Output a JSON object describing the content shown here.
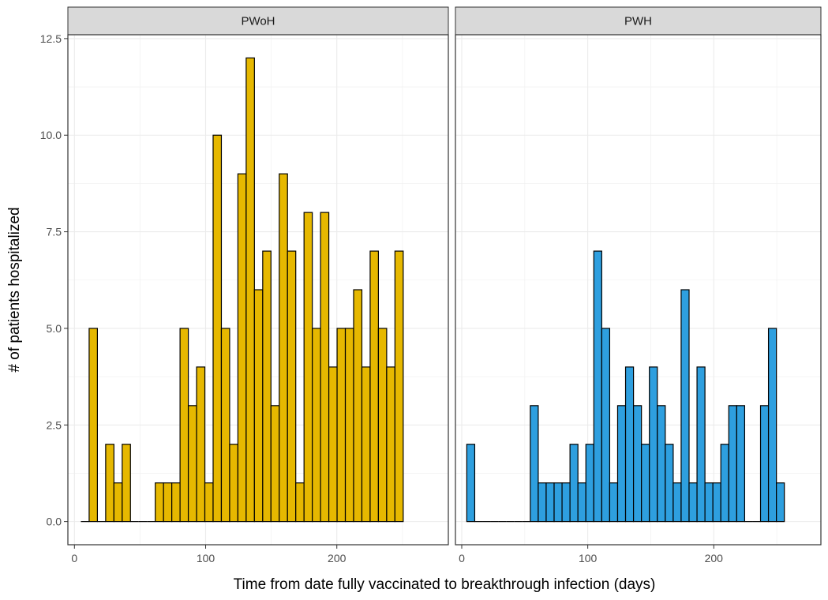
{
  "chart_data": {
    "type": "bar",
    "subtype": "histogram-faceted",
    "xlabel": "Time from date fully vaccinated to breakthrough infection (days)",
    "ylabel": "# of patients hospitalized",
    "ylim": [
      -0.6,
      12.6
    ],
    "yticks": [
      0.0,
      2.5,
      5.0,
      7.5,
      10.0,
      12.5
    ],
    "ytick_labels": [
      "0.0",
      "2.5",
      "5.0",
      "7.5",
      "10.0",
      "12.5"
    ],
    "xlim": [
      -5,
      285
    ],
    "xticks": [
      0,
      100,
      200
    ],
    "xtick_labels": [
      "0",
      "100",
      "200"
    ],
    "bin_width": 6.3,
    "grid": true,
    "panels": [
      {
        "name": "PWoH",
        "fill": "#E6B800",
        "bin_start": 4.9,
        "values": [
          0,
          5,
          0,
          2,
          1,
          2,
          0,
          0,
          0,
          1,
          1,
          1,
          5,
          3,
          4,
          1,
          10,
          5,
          2,
          9,
          12,
          6,
          7,
          3,
          9,
          7,
          1,
          8,
          5,
          8,
          4,
          5,
          5,
          6,
          4,
          7,
          5,
          4,
          7
        ]
      },
      {
        "name": "PWH",
        "fill": "#2E9FDF",
        "bin_start": 4.0,
        "values": [
          2,
          0,
          0,
          0,
          0,
          0,
          0,
          0,
          3,
          1,
          1,
          1,
          1,
          2,
          1,
          2,
          7,
          5,
          1,
          3,
          4,
          3,
          2,
          4,
          3,
          2,
          1,
          6,
          1,
          4,
          1,
          1,
          2,
          3,
          3,
          0,
          0,
          3,
          5,
          1
        ]
      }
    ]
  }
}
